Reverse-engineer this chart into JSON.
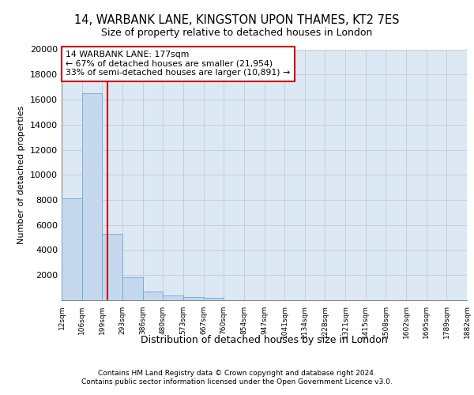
{
  "title": "14, WARBANK LANE, KINGSTON UPON THAMES, KT2 7ES",
  "subtitle": "Size of property relative to detached houses in London",
  "xlabel": "Distribution of detached houses by size in London",
  "ylabel": "Number of detached properties",
  "footer_line1": "Contains HM Land Registry data © Crown copyright and database right 2024.",
  "footer_line2": "Contains public sector information licensed under the Open Government Licence v3.0.",
  "bar_values": [
    8100,
    16500,
    5300,
    1800,
    700,
    350,
    280,
    220,
    0,
    0,
    0,
    0,
    0,
    0,
    0,
    0,
    0,
    0,
    0,
    0
  ],
  "bin_labels": [
    "12sqm",
    "106sqm",
    "199sqm",
    "293sqm",
    "386sqm",
    "480sqm",
    "573sqm",
    "667sqm",
    "760sqm",
    "854sqm",
    "947sqm",
    "1041sqm",
    "1134sqm",
    "1228sqm",
    "1321sqm",
    "1415sqm",
    "1508sqm",
    "1602sqm",
    "1695sqm",
    "1789sqm",
    "1882sqm"
  ],
  "bar_color": "#c5d8ee",
  "bar_edge_color": "#6aaad4",
  "red_line_color": "#cc0000",
  "annotation_text_line1": "14 WARBANK LANE: 177sqm",
  "annotation_text_line2": "← 67% of detached houses are smaller (21,954)",
  "annotation_text_line3": "33% of semi-detached houses are larger (10,891) →",
  "annotation_box_color": "#ffffff",
  "annotation_box_edge": "#cc0000",
  "ylim": [
    0,
    20000
  ],
  "yticks": [
    0,
    2000,
    4000,
    6000,
    8000,
    10000,
    12000,
    14000,
    16000,
    18000,
    20000
  ],
  "grid_color": "#cccccc",
  "bg_color": "#dce9f5",
  "fig_bg_color": "#ffffff",
  "red_line_x": 1.76
}
